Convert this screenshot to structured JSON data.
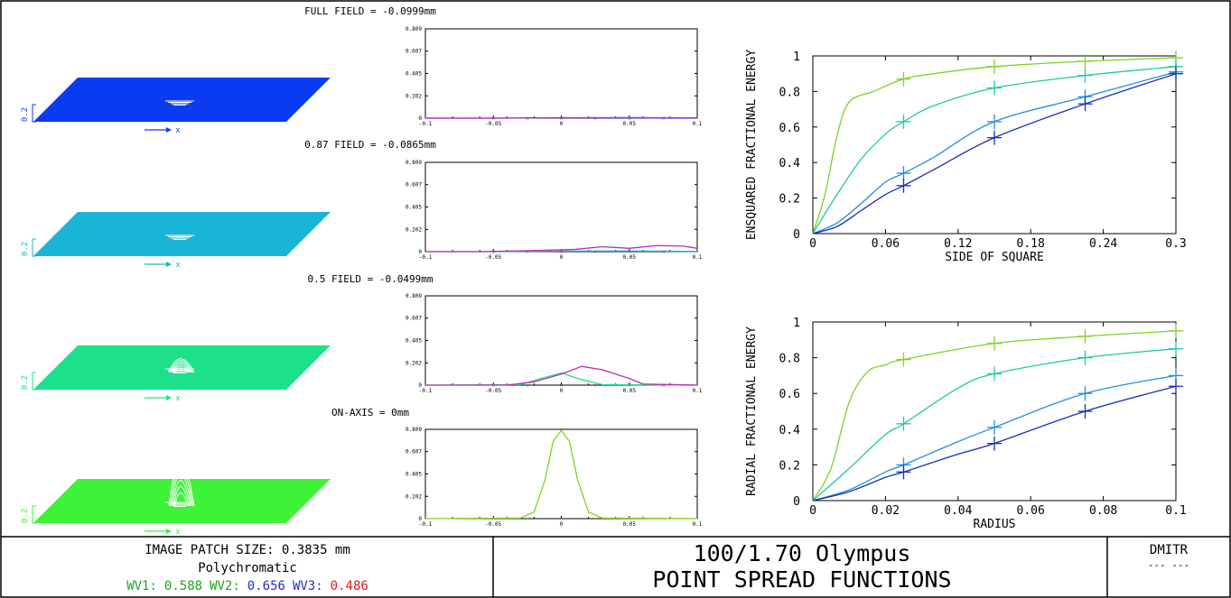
{
  "rows": [
    {
      "field_label": "FULL FIELD = -0.0999mm",
      "surface_color": "#0b3bf0",
      "surface_label": "0.2",
      "axis_x_label": "x",
      "peak": 0.02,
      "profile": {
        "xticks": [
          "-0.1",
          "-0.05",
          "0",
          "0.05",
          "0.1"
        ],
        "yticks": [
          "0",
          "0.202",
          "0.405",
          "0.607",
          "0.809"
        ],
        "ylim": [
          0,
          0.809
        ],
        "series": [
          {
            "color": "#1a3cff",
            "x": [
              -0.1,
              -0.05,
              0,
              0.05,
              0.1
            ],
            "y": [
              0,
              0,
              0.003,
              0.002,
              0
            ]
          },
          {
            "color": "#c02ab0",
            "x": [
              -0.1,
              -0.05,
              0,
              0.05,
              0.1
            ],
            "y": [
              0,
              0,
              0.004,
              0.005,
              0.002
            ]
          }
        ]
      }
    },
    {
      "field_label": "0.87 FIELD = -0.0865mm",
      "surface_color": "#19b4d6",
      "surface_label": "0.2",
      "axis_x_label": "x",
      "peak": 0.05,
      "profile": {
        "xticks": [
          "-0.1",
          "-0.05",
          "0",
          "0.05",
          "0.1"
        ],
        "yticks": [
          "0",
          "0.202",
          "0.405",
          "0.607",
          "0.809"
        ],
        "ylim": [
          0,
          0.809
        ],
        "series": [
          {
            "color": "#19b4d6",
            "x": [
              -0.1,
              -0.05,
              0,
              0.05,
              0.1
            ],
            "y": [
              0,
              0,
              0.005,
              0.006,
              0.002
            ]
          },
          {
            "color": "#c02ab0",
            "x": [
              -0.1,
              -0.06,
              -0.02,
              0.01,
              0.03,
              0.05,
              0.07,
              0.09,
              0.1
            ],
            "y": [
              0,
              0,
              0.01,
              0.02,
              0.045,
              0.03,
              0.055,
              0.05,
              0.03
            ]
          }
        ]
      }
    },
    {
      "field_label": "0.5 FIELD = -0.0499mm",
      "surface_color": "#1de08a",
      "surface_label": "0.2",
      "axis_x_label": "x",
      "peak": 0.3,
      "profile": {
        "xticks": [
          "-0.1",
          "-0.05",
          "0",
          "0.05",
          "0.1"
        ],
        "yticks": [
          "0",
          "0.202",
          "0.405",
          "0.607",
          "0.809"
        ],
        "ylim": [
          0,
          0.809
        ],
        "series": [
          {
            "color": "#1de08a",
            "x": [
              -0.1,
              -0.03,
              -0.015,
              0,
              0.015,
              0.03,
              0.1
            ],
            "y": [
              0,
              0.005,
              0.06,
              0.11,
              0.05,
              0.005,
              0
            ]
          },
          {
            "color": "#c02ab0",
            "x": [
              -0.1,
              -0.04,
              -0.02,
              0,
              0.015,
              0.03,
              0.05,
              0.06,
              0.1
            ],
            "y": [
              0,
              0,
              0.03,
              0.1,
              0.17,
              0.14,
              0.06,
              0.01,
              0
            ]
          }
        ]
      }
    },
    {
      "field_label": "ON-AXIS = 0mm",
      "surface_color": "#3ef238",
      "surface_label": "0.2",
      "axis_x_label": "x",
      "peak": 1.0,
      "profile": {
        "xticks": [
          "-0.1",
          "-0.05",
          "0",
          "0.05",
          "0.1"
        ],
        "yticks": [
          "0",
          "0.202",
          "0.405",
          "0.607",
          "0.809"
        ],
        "ylim": [
          0,
          0.809
        ],
        "series": [
          {
            "color": "#7ed321",
            "x": [
              -0.1,
              -0.03,
              -0.02,
              -0.012,
              -0.006,
              0,
              0.006,
              0.012,
              0.02,
              0.03,
              0.1
            ],
            "y": [
              0,
              0.005,
              0.06,
              0.35,
              0.7,
              0.8,
              0.7,
              0.35,
              0.06,
              0.005,
              0
            ]
          }
        ]
      }
    }
  ],
  "chart_data": [
    {
      "type": "line",
      "xlabel": "SIDE OF SQUARE",
      "ylabel": "ENSQUARED FRACTIONAL ENERGY",
      "xlim": [
        0,
        0.3
      ],
      "ylim": [
        0,
        1
      ],
      "xticks": [
        "0",
        "0.06",
        "0.12",
        "0.18",
        "0.24",
        "0.3"
      ],
      "yticks": [
        "0",
        "0.2",
        "0.4",
        "0.6",
        "0.8",
        "1"
      ],
      "series": [
        {
          "color": "#7ed321",
          "x": [
            0,
            0.01,
            0.02,
            0.03,
            0.05,
            0.075,
            0.1,
            0.15,
            0.225,
            0.3
          ],
          "y": [
            0,
            0.22,
            0.55,
            0.74,
            0.8,
            0.87,
            0.9,
            0.94,
            0.97,
            0.99
          ]
        },
        {
          "color": "#1cc9a6",
          "x": [
            0,
            0.02,
            0.04,
            0.06,
            0.075,
            0.1,
            0.15,
            0.225,
            0.3
          ],
          "y": [
            0,
            0.22,
            0.42,
            0.56,
            0.63,
            0.72,
            0.82,
            0.89,
            0.94
          ]
        },
        {
          "color": "#1e90d6",
          "x": [
            0,
            0.02,
            0.04,
            0.06,
            0.075,
            0.1,
            0.15,
            0.225,
            0.3
          ],
          "y": [
            0,
            0.06,
            0.17,
            0.29,
            0.34,
            0.43,
            0.63,
            0.77,
            0.91
          ]
        },
        {
          "color": "#1a2fb8",
          "x": [
            0,
            0.02,
            0.04,
            0.06,
            0.075,
            0.1,
            0.15,
            0.225,
            0.3
          ],
          "y": [
            0,
            0.04,
            0.13,
            0.22,
            0.27,
            0.36,
            0.54,
            0.73,
            0.9
          ]
        }
      ],
      "markers_x": [
        0.075,
        0.15,
        0.225
      ]
    },
    {
      "type": "line",
      "xlabel": "RADIUS",
      "ylabel": "RADIAL FRACTIONAL ENERGY",
      "xlim": [
        0,
        0.1
      ],
      "ylim": [
        0,
        1
      ],
      "xticks": [
        "0",
        "0.02",
        "0.04",
        "0.06",
        "0.08",
        "0.1"
      ],
      "yticks": [
        "0",
        "0.2",
        "0.4",
        "0.6",
        "0.8",
        "1"
      ],
      "series": [
        {
          "color": "#7ed321",
          "x": [
            0,
            0.005,
            0.01,
            0.015,
            0.02,
            0.025,
            0.05,
            0.075,
            0.1
          ],
          "y": [
            0,
            0.18,
            0.55,
            0.72,
            0.76,
            0.79,
            0.88,
            0.92,
            0.95
          ]
        },
        {
          "color": "#1cc9a6",
          "x": [
            0,
            0.01,
            0.02,
            0.025,
            0.04,
            0.05,
            0.075,
            0.1
          ],
          "y": [
            0,
            0.18,
            0.37,
            0.43,
            0.63,
            0.71,
            0.8,
            0.85
          ]
        },
        {
          "color": "#1e90d6",
          "x": [
            0,
            0.01,
            0.02,
            0.025,
            0.04,
            0.05,
            0.075,
            0.1
          ],
          "y": [
            0,
            0.06,
            0.16,
            0.2,
            0.33,
            0.41,
            0.6,
            0.7
          ]
        },
        {
          "color": "#1a2fb8",
          "x": [
            0,
            0.01,
            0.02,
            0.025,
            0.04,
            0.05,
            0.075,
            0.1
          ],
          "y": [
            0,
            0.05,
            0.13,
            0.16,
            0.26,
            0.32,
            0.5,
            0.64
          ]
        }
      ],
      "markers_x": [
        0.025,
        0.05,
        0.075
      ]
    }
  ],
  "footer": {
    "patch_size": "IMAGE PATCH SIZE: 0.3835 mm",
    "mode": "Polychromatic",
    "wv1_label": "WV1:",
    "wv1_value": "0.588",
    "wv2_label": "WV2:",
    "wv2_value": "0.656",
    "wv3_label": "WV3:",
    "wv3_value": "0.486",
    "wv1_color": "#21a321",
    "wv2_color": "#2231c8",
    "wv3_color": "#e01b1b",
    "title_line1": "100/1.70 Olympus",
    "title_line2": "POINT SPREAD FUNCTIONS",
    "corner_label": "DMITR",
    "corner_sub": "--- ---"
  }
}
